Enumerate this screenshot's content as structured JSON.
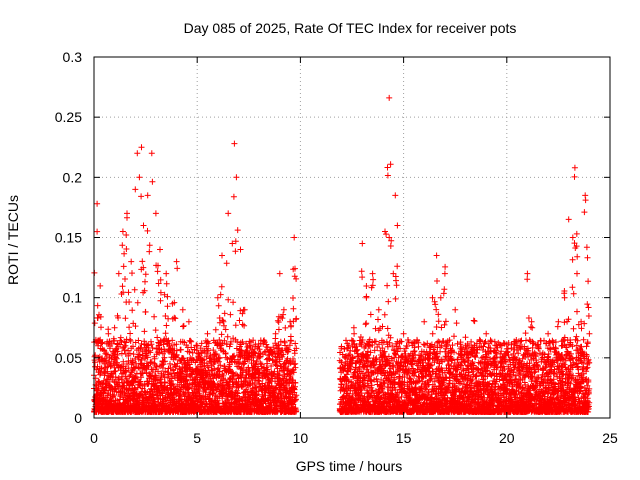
{
  "chart_data": {
    "type": "scatter",
    "title": "Day 085 of 2025, Rate Of TEC Index for receiver pots",
    "xlabel": "GPS time / hours",
    "ylabel": "ROTI / TECUs",
    "xlim": [
      0,
      25
    ],
    "ylim": [
      0,
      0.3
    ],
    "grid": true,
    "marker": "+",
    "marker_color": "#ff0000",
    "x_ticks": [
      {
        "value": 0,
        "label": "0"
      },
      {
        "value": 5,
        "label": "5"
      },
      {
        "value": 10,
        "label": "10"
      },
      {
        "value": 15,
        "label": "15"
      },
      {
        "value": 20,
        "label": "20"
      },
      {
        "value": 25,
        "label": "25"
      }
    ],
    "y_ticks": [
      {
        "value": 0,
        "label": "0"
      },
      {
        "value": 0.05,
        "label": "0.05"
      },
      {
        "value": 0.1,
        "label": "0.1"
      },
      {
        "value": 0.15,
        "label": "0.15"
      },
      {
        "value": 0.2,
        "label": "0.2"
      },
      {
        "value": 0.25,
        "label": "0.25"
      },
      {
        "value": 0.3,
        "label": "0.3"
      }
    ],
    "data_gap_hours": [
      9.8,
      11.9
    ],
    "series": [
      {
        "name": "ROTI",
        "points": [
          [
            0.15,
            0.178
          ],
          [
            0.2,
            0.06
          ],
          [
            0.3,
            0.065
          ],
          [
            0.5,
            0.045
          ],
          [
            0.7,
            0.07
          ],
          [
            1.0,
            0.075
          ],
          [
            1.2,
            0.12
          ],
          [
            1.4,
            0.155
          ],
          [
            1.6,
            0.17
          ],
          [
            1.8,
            0.13
          ],
          [
            2.0,
            0.19
          ],
          [
            2.1,
            0.22
          ],
          [
            2.2,
            0.2
          ],
          [
            2.3,
            0.225
          ],
          [
            2.4,
            0.16
          ],
          [
            2.6,
            0.185
          ],
          [
            2.8,
            0.22
          ],
          [
            3.0,
            0.17
          ],
          [
            3.2,
            0.14
          ],
          [
            3.5,
            0.12
          ],
          [
            3.8,
            0.095
          ],
          [
            4.0,
            0.13
          ],
          [
            4.3,
            0.09
          ],
          [
            4.6,
            0.08
          ],
          [
            5.0,
            0.06
          ],
          [
            5.5,
            0.07
          ],
          [
            6.0,
            0.1
          ],
          [
            6.2,
            0.135
          ],
          [
            6.5,
            0.17
          ],
          [
            6.7,
            0.145
          ],
          [
            6.8,
            0.228
          ],
          [
            6.9,
            0.2
          ],
          [
            7.1,
            0.14
          ],
          [
            7.3,
            0.09
          ],
          [
            7.6,
            0.06
          ],
          [
            8.0,
            0.05
          ],
          [
            8.5,
            0.055
          ],
          [
            8.8,
            0.07
          ],
          [
            9.0,
            0.12
          ],
          [
            9.2,
            0.09
          ],
          [
            9.5,
            0.08
          ],
          [
            9.7,
            0.15
          ],
          [
            12.2,
            0.045
          ],
          [
            12.6,
            0.07
          ],
          [
            13.0,
            0.145
          ],
          [
            13.2,
            0.1
          ],
          [
            13.5,
            0.12
          ],
          [
            13.8,
            0.09
          ],
          [
            14.1,
            0.155
          ],
          [
            14.2,
            0.11
          ],
          [
            14.3,
            0.266
          ],
          [
            14.5,
            0.12
          ],
          [
            14.6,
            0.185
          ],
          [
            14.7,
            0.16
          ],
          [
            15.0,
            0.07
          ],
          [
            15.5,
            0.055
          ],
          [
            16.0,
            0.08
          ],
          [
            16.4,
            0.1
          ],
          [
            16.6,
            0.135
          ],
          [
            16.8,
            0.1
          ],
          [
            17.0,
            0.12
          ],
          [
            17.5,
            0.09
          ],
          [
            18.0,
            0.06
          ],
          [
            18.4,
            0.081
          ],
          [
            19.0,
            0.07
          ],
          [
            19.5,
            0.06
          ],
          [
            20.0,
            0.055
          ],
          [
            20.5,
            0.06
          ],
          [
            21.0,
            0.12
          ],
          [
            21.2,
            0.08
          ],
          [
            21.5,
            0.06
          ],
          [
            22.0,
            0.07
          ],
          [
            22.5,
            0.08
          ],
          [
            22.8,
            0.1
          ],
          [
            23.0,
            0.165
          ],
          [
            23.2,
            0.15
          ],
          [
            23.3,
            0.208
          ],
          [
            23.4,
            0.12
          ],
          [
            23.6,
            0.08
          ],
          [
            23.8,
            0.185
          ],
          [
            24.0,
            0.07
          ]
        ]
      }
    ]
  }
}
